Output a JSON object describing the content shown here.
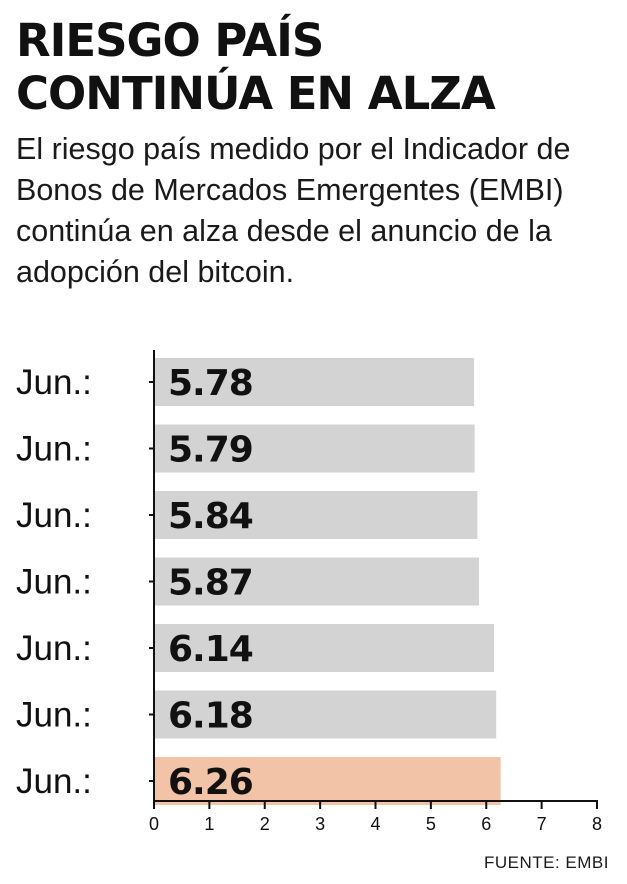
{
  "header": {
    "title_line1": "RIESGO PAÍS",
    "title_line2": "CONTINÚA EN ALZA",
    "subtitle": "El riesgo país medido por el Indicador de Bonos de Mercados Emergentes (EMBI) continúa en alza desde el anuncio de la adopción del bitcoin."
  },
  "footer": {
    "source": "FUENTE: EMBI"
  },
  "colors": {
    "bar": "#d3d3d3",
    "highlight": "#f2c3a6",
    "axis": "#111111",
    "text": "#111111"
  },
  "chart_data": {
    "type": "bar",
    "orientation": "horizontal",
    "categories": [
      "Jun.:",
      "Jun.:",
      "Jun.:",
      "Jun.:",
      "Jun.:",
      "Jun.:",
      "Jun.:"
    ],
    "values": [
      5.78,
      5.79,
      5.84,
      5.87,
      6.14,
      6.18,
      6.26
    ],
    "value_labels": [
      "5.78",
      "5.79",
      "5.84",
      "5.87",
      "6.14",
      "6.18",
      "6.26"
    ],
    "highlight_index": 6,
    "xlim": [
      0,
      8
    ],
    "xticks": [
      0,
      1,
      2,
      3,
      4,
      5,
      6,
      7,
      8
    ],
    "title": "",
    "xlabel": "",
    "ylabel": "",
    "grid": false,
    "legend": "none"
  }
}
